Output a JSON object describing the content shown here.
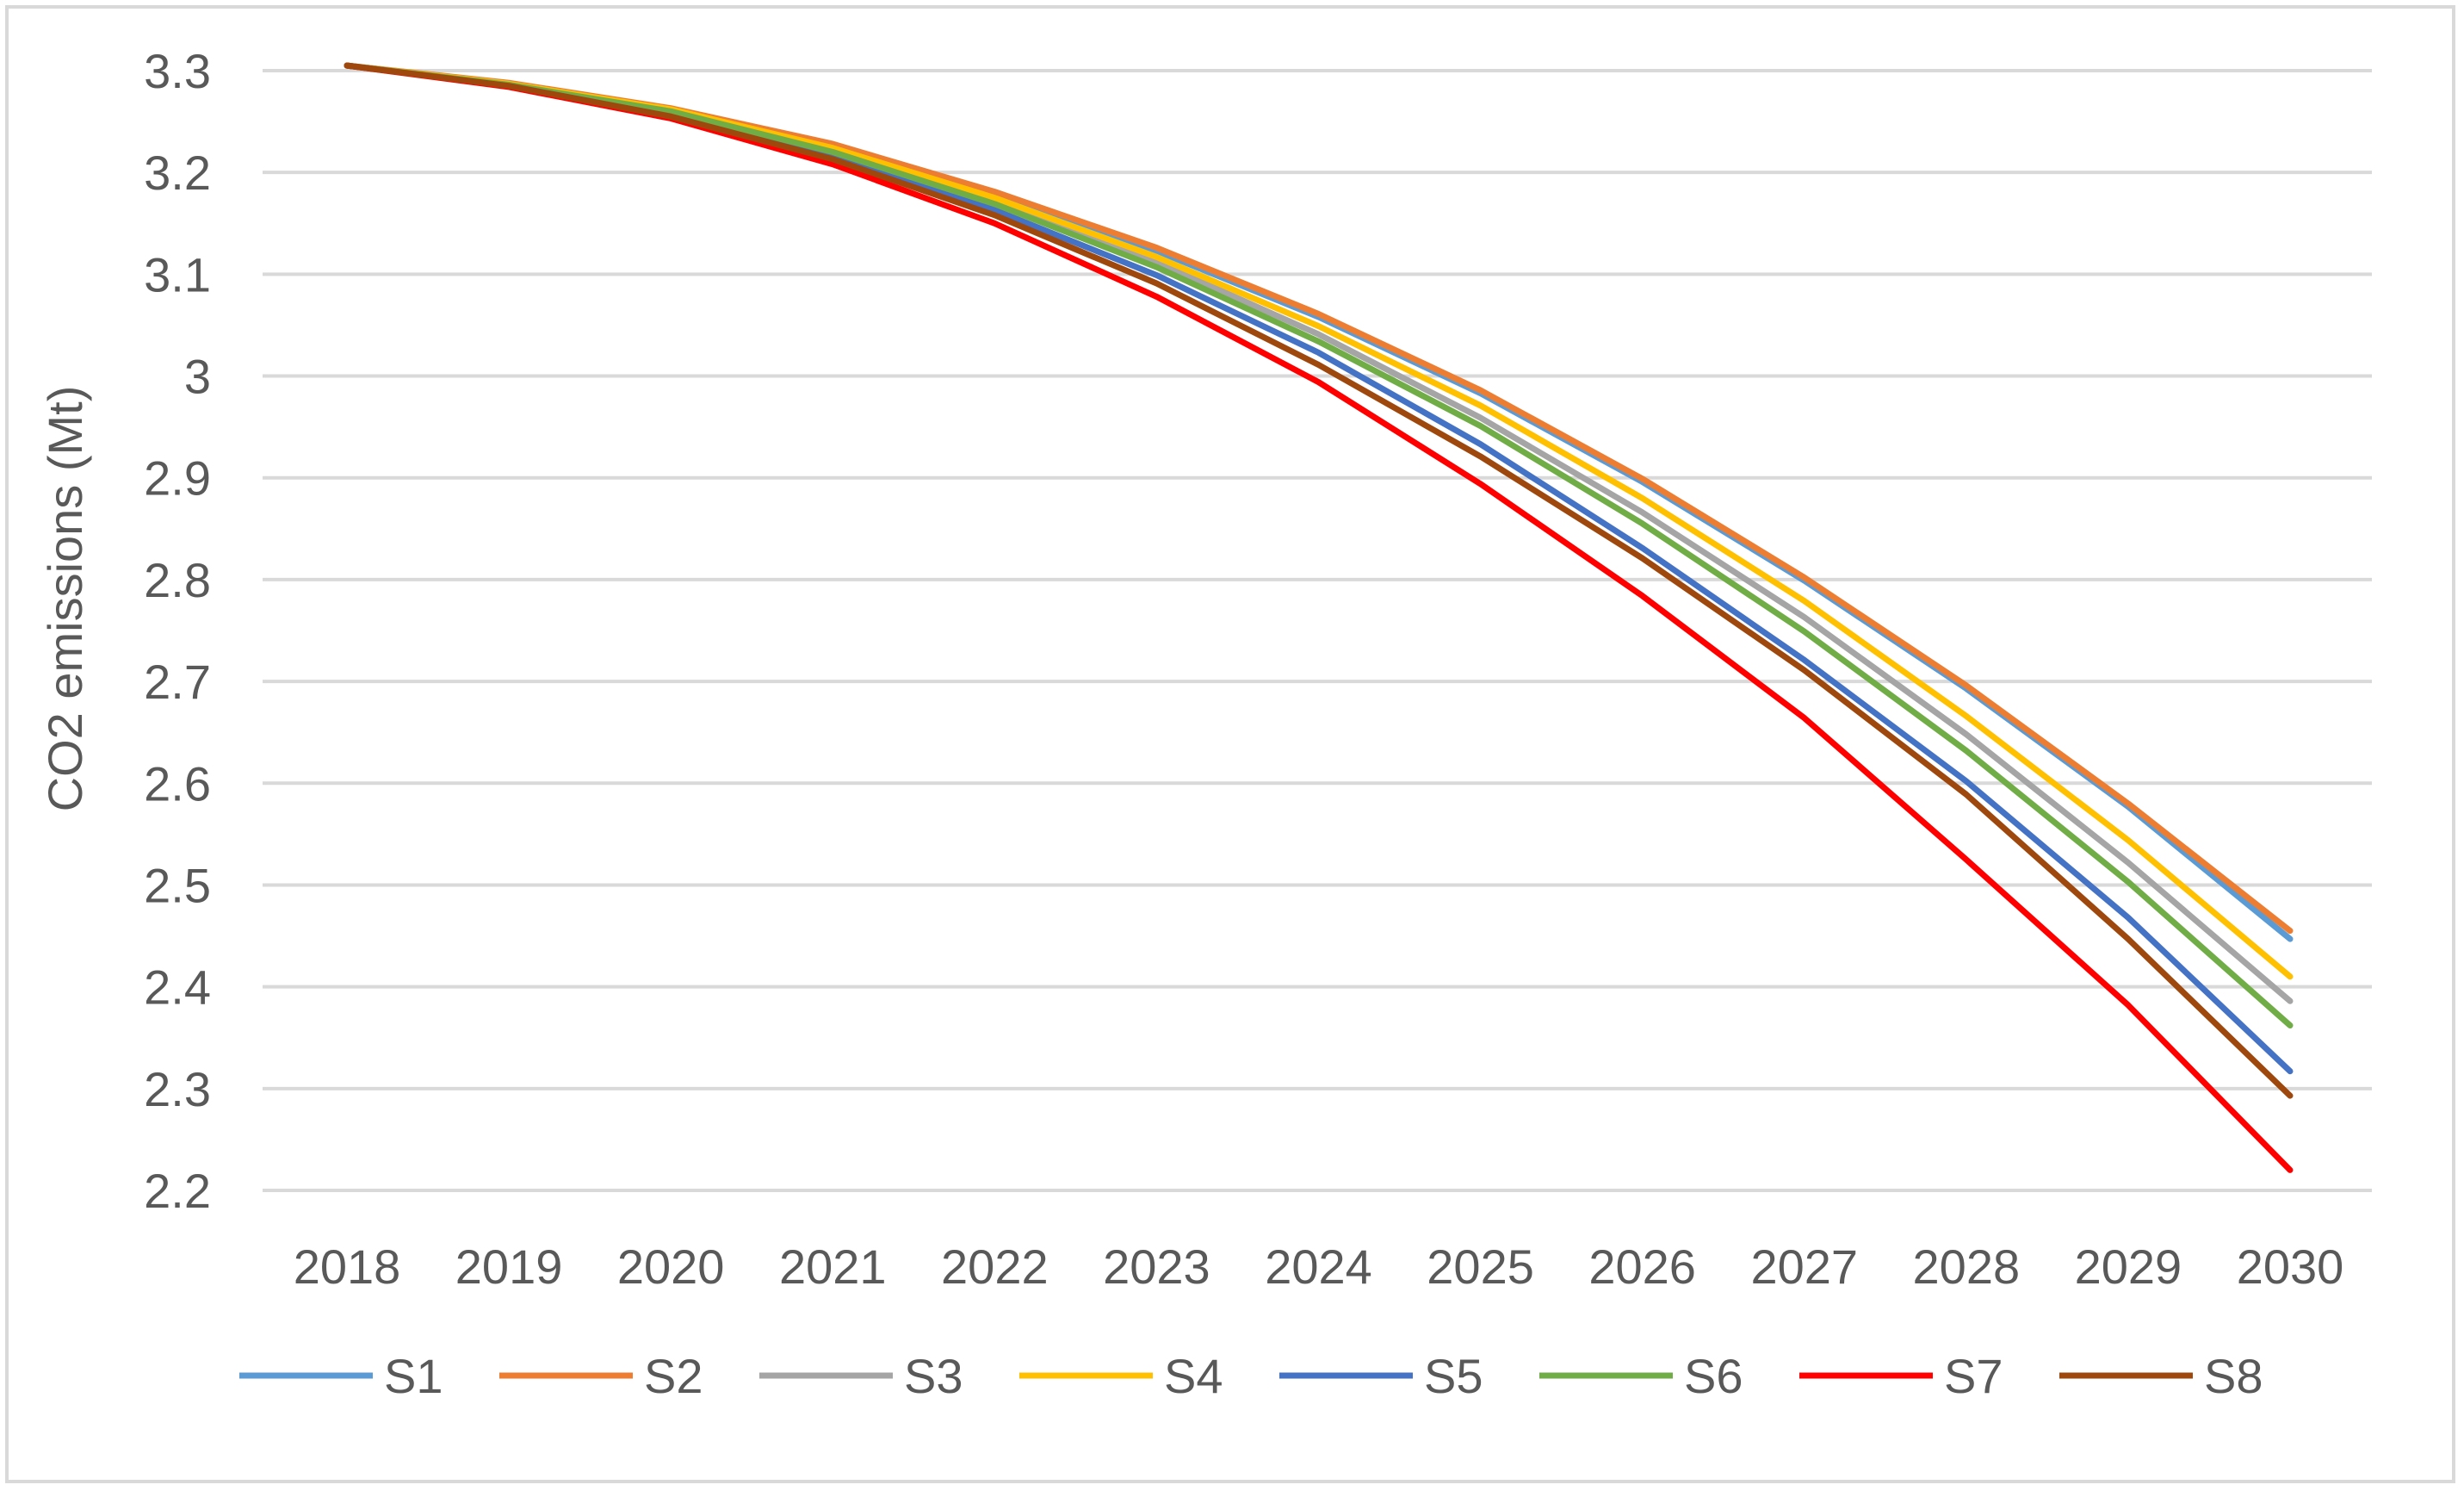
{
  "chart_data": {
    "type": "line",
    "title": "",
    "xlabel": "",
    "ylabel": "CO2 emissions  (Mt)",
    "ylim": [
      2.2,
      3.3
    ],
    "yticks": [
      "3.3",
      "3.2",
      "3.1",
      "3",
      "2.9",
      "2.8",
      "2.7",
      "2.6",
      "2.5",
      "2.4",
      "2.3",
      "2.2"
    ],
    "grid": true,
    "legend_position": "bottom",
    "categories": [
      "2018",
      "2019",
      "2020",
      "2021",
      "2022",
      "2023",
      "2024",
      "2025",
      "2026",
      "2027",
      "2028",
      "2029",
      "2030"
    ],
    "series": [
      {
        "name": "S1",
        "color": "#5b9bd5",
        "values": [
          3.305,
          3.287,
          3.262,
          3.226,
          3.178,
          3.123,
          3.058,
          2.983,
          2.896,
          2.799,
          2.693,
          2.577,
          2.447
        ]
      },
      {
        "name": "S2",
        "color": "#ed7d31",
        "values": [
          3.305,
          3.288,
          3.263,
          3.228,
          3.181,
          3.126,
          3.061,
          2.986,
          2.899,
          2.802,
          2.696,
          2.58,
          2.455
        ]
      },
      {
        "name": "S3",
        "color": "#a5a5a5",
        "values": [
          3.305,
          3.287,
          3.261,
          3.222,
          3.172,
          3.112,
          3.041,
          2.959,
          2.866,
          2.763,
          2.648,
          2.522,
          2.386
        ]
      },
      {
        "name": "S4",
        "color": "#ffc000",
        "values": [
          3.305,
          3.287,
          3.262,
          3.224,
          3.175,
          3.117,
          3.049,
          2.971,
          2.88,
          2.779,
          2.666,
          2.544,
          2.41
        ]
      },
      {
        "name": "S5",
        "color": "#4472c4",
        "values": [
          3.305,
          3.285,
          3.257,
          3.216,
          3.163,
          3.099,
          3.023,
          2.933,
          2.831,
          2.721,
          2.602,
          2.468,
          2.317
        ]
      },
      {
        "name": "S6",
        "color": "#70ad47",
        "values": [
          3.305,
          3.286,
          3.26,
          3.22,
          3.169,
          3.107,
          3.034,
          2.951,
          2.855,
          2.749,
          2.632,
          2.503,
          2.362
        ]
      },
      {
        "name": "S7",
        "color": "#ff0000",
        "values": [
          3.305,
          3.284,
          3.253,
          3.208,
          3.15,
          3.078,
          2.994,
          2.894,
          2.784,
          2.664,
          2.525,
          2.382,
          2.22
        ]
      },
      {
        "name": "S8",
        "color": "#9e480e",
        "values": [
          3.305,
          3.285,
          3.255,
          3.213,
          3.158,
          3.091,
          3.011,
          2.921,
          2.821,
          2.711,
          2.589,
          2.447,
          2.293
        ]
      }
    ]
  }
}
